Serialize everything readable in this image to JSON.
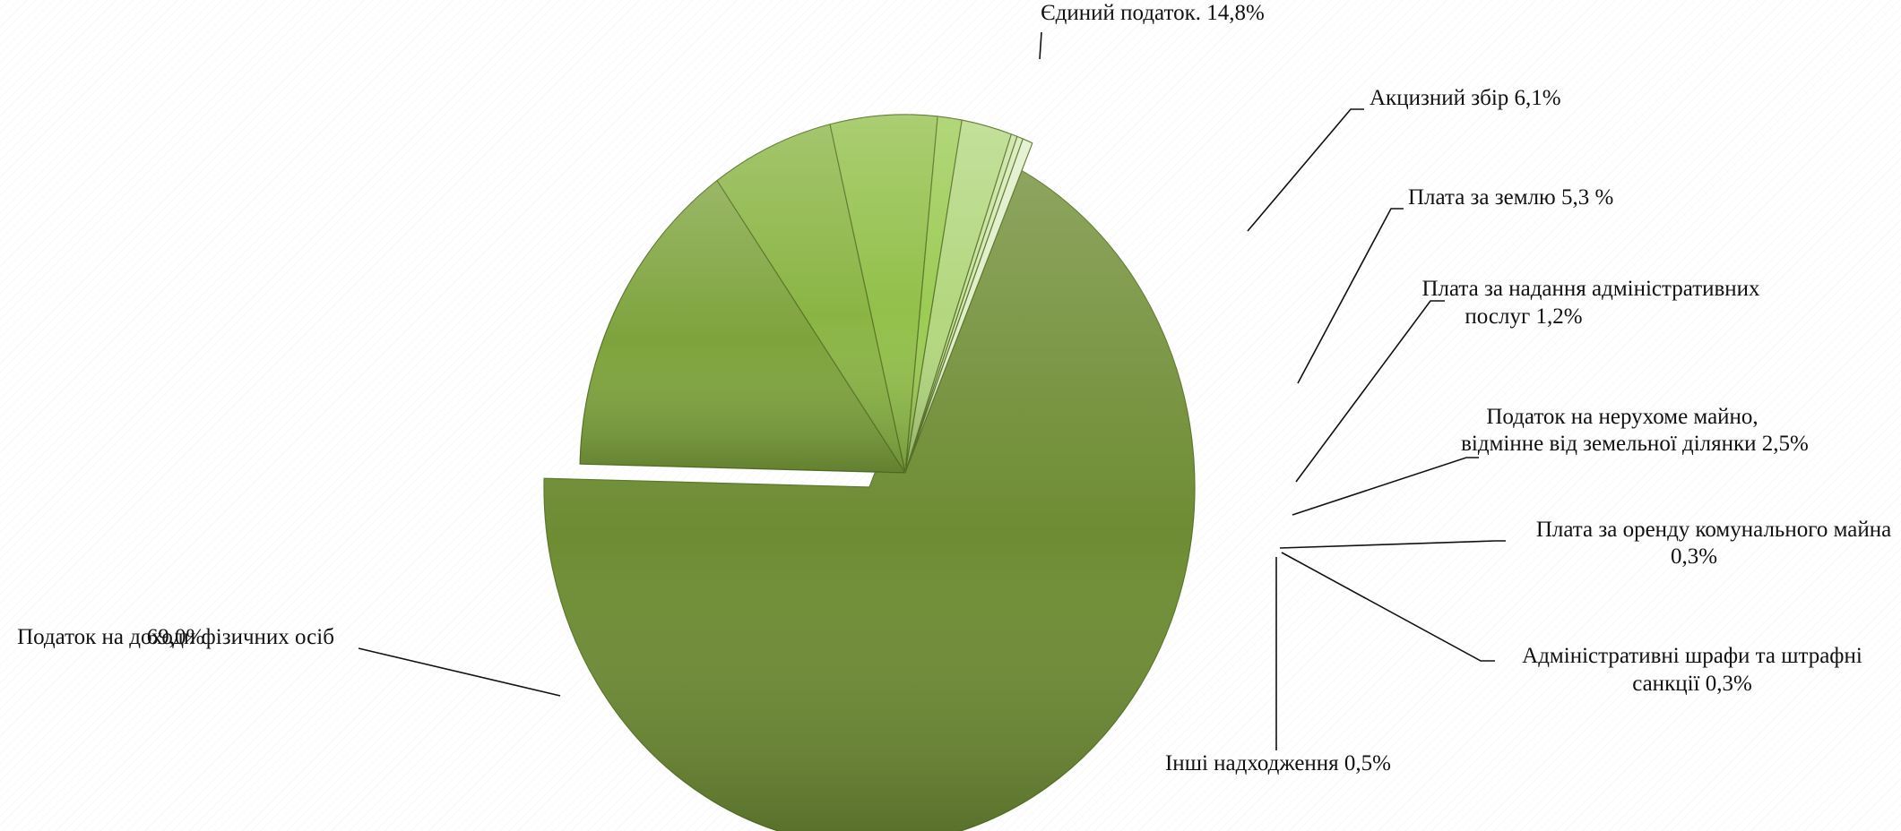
{
  "chart_data": {
    "type": "pie",
    "title": "",
    "slices": [
      {
        "label": "Податок на доходи фізичних осіб",
        "value": 69.0,
        "label_lines": [
          "Податок на доходи фізичних осіб",
          "69,0%"
        ],
        "color": "#6e8c33"
      },
      {
        "label": "Єдиний податок",
        "value": 14.8,
        "label_lines": [
          "Єдиний податок. 14,8%"
        ],
        "color": "#7ea33c"
      },
      {
        "label": "Акцизний збір",
        "value": 6.1,
        "label_lines": [
          "Акцизний збір 6,1%"
        ],
        "color": "#8ab544"
      },
      {
        "label": "Плата за землю",
        "value": 5.3,
        "label_lines": [
          "Плата за землю 5,3 %"
        ],
        "color": "#92c04a"
      },
      {
        "label": "Плата за надання адміністративних послуг",
        "value": 1.2,
        "label_lines": [
          "Плата за надання адміністративних",
          "послуг 1,2%"
        ],
        "color": "#9ccb55"
      },
      {
        "label": "Податок на нерухоме майно, відмінне від земельної ділянки",
        "value": 2.5,
        "label_lines": [
          "Податок на нерухоме майно,",
          "відмінне від земельної ділянки 2,5%"
        ],
        "color": "#b3d77f"
      },
      {
        "label": "Плата за оренду комунального майна",
        "value": 0.3,
        "label_lines": [
          "Плата за оренду комунального майна",
          "0,3%"
        ],
        "color": "#c6e19d"
      },
      {
        "label": "Адміністративні шрафи та штрафні санкції",
        "value": 0.3,
        "label_lines": [
          "Адміністративні шрафи та штрафні",
          "санкції 0,3%"
        ],
        "color": "#d3e8b4"
      },
      {
        "label": "Інші надходження",
        "value": 0.5,
        "label_lines": [
          "Інші надходження 0,5%"
        ],
        "color": "#dfeec8"
      }
    ]
  }
}
